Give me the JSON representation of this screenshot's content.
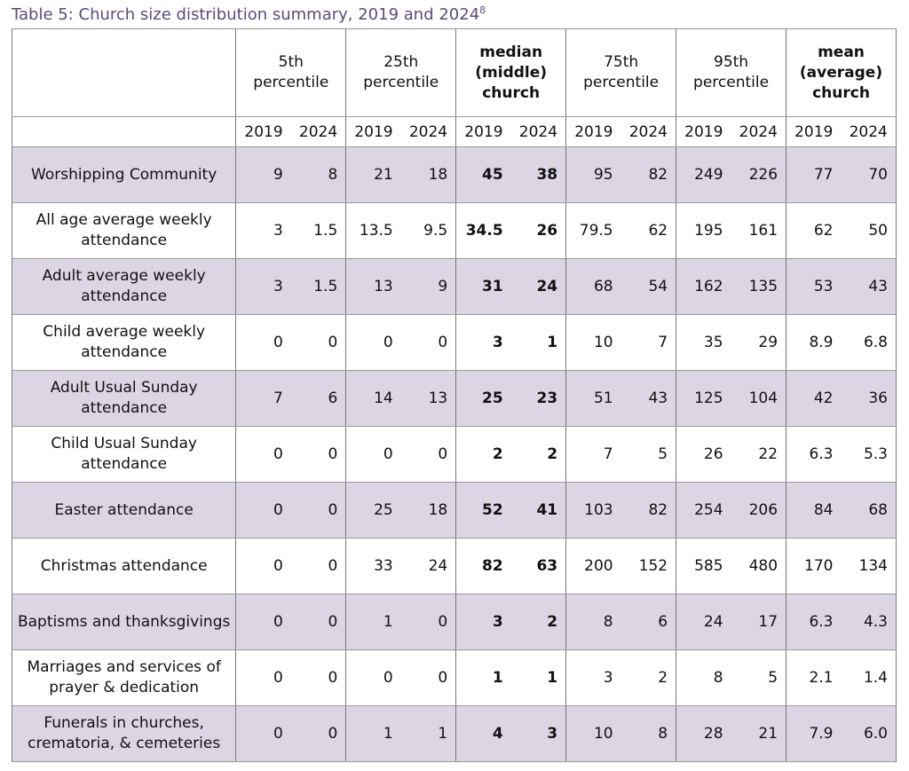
{
  "title": "Table 5: Church size distribution summary, 2019 and 2024",
  "footnote_mark": "8",
  "table": {
    "groups": [
      {
        "lines": [
          "5th",
          "percentile"
        ],
        "bold": false
      },
      {
        "lines": [
          "25th",
          "percentile"
        ],
        "bold": false
      },
      {
        "lines": [
          "median",
          "(middle)",
          "church"
        ],
        "bold": true
      },
      {
        "lines": [
          "75th",
          "percentile"
        ],
        "bold": false
      },
      {
        "lines": [
          "95th",
          "percentile"
        ],
        "bold": false
      },
      {
        "lines": [
          "mean",
          "(average)",
          "church"
        ],
        "bold": true
      }
    ],
    "years": [
      "2019",
      "2024",
      "2019",
      "2024",
      "2019",
      "2024",
      "2019",
      "2024",
      "2019",
      "2024",
      "2019",
      "2024"
    ],
    "rows": [
      {
        "label": [
          "Worshipping Community"
        ],
        "values": [
          "9",
          "8",
          "21",
          "18",
          "45",
          "38",
          "95",
          "82",
          "249",
          "226",
          "77",
          "70"
        ]
      },
      {
        "label": [
          "All age average weekly",
          "attendance"
        ],
        "values": [
          "3",
          "1.5",
          "13.5",
          "9.5",
          "34.5",
          "26",
          "79.5",
          "62",
          "195",
          "161",
          "62",
          "50"
        ]
      },
      {
        "label": [
          "Adult average weekly",
          "attendance"
        ],
        "values": [
          "3",
          "1.5",
          "13",
          "9",
          "31",
          "24",
          "68",
          "54",
          "162",
          "135",
          "53",
          "43"
        ]
      },
      {
        "label": [
          "Child average weekly",
          "attendance"
        ],
        "values": [
          "0",
          "0",
          "0",
          "0",
          "3",
          "1",
          "10",
          "7",
          "35",
          "29",
          "8.9",
          "6.8"
        ]
      },
      {
        "label": [
          "Adult Usual Sunday",
          "attendance"
        ],
        "values": [
          "7",
          "6",
          "14",
          "13",
          "25",
          "23",
          "51",
          "43",
          "125",
          "104",
          "42",
          "36"
        ]
      },
      {
        "label": [
          "Child Usual Sunday",
          "attendance"
        ],
        "values": [
          "0",
          "0",
          "0",
          "0",
          "2",
          "2",
          "7",
          "5",
          "26",
          "22",
          "6.3",
          "5.3"
        ]
      },
      {
        "label": [
          "Easter attendance"
        ],
        "values": [
          "0",
          "0",
          "25",
          "18",
          "52",
          "41",
          "103",
          "82",
          "254",
          "206",
          "84",
          "68"
        ]
      },
      {
        "label": [
          "Christmas attendance"
        ],
        "values": [
          "0",
          "0",
          "33",
          "24",
          "82",
          "63",
          "200",
          "152",
          "585",
          "480",
          "170",
          "134"
        ]
      },
      {
        "label": [
          "Baptisms and thanksgivings"
        ],
        "values": [
          "0",
          "0",
          "1",
          "0",
          "3",
          "2",
          "8",
          "6",
          "24",
          "17",
          "6.3",
          "4.3"
        ]
      },
      {
        "label": [
          "Marriages and services of",
          "prayer & dedication"
        ],
        "values": [
          "0",
          "0",
          "0",
          "0",
          "1",
          "1",
          "3",
          "2",
          "8",
          "5",
          "2.1",
          "1.4"
        ]
      },
      {
        "label": [
          "Funerals in churches,",
          "crematoria, & cemeteries"
        ],
        "values": [
          "0",
          "0",
          "1",
          "1",
          "4",
          "3",
          "10",
          "8",
          "28",
          "21",
          "7.9",
          "6.0"
        ]
      }
    ]
  }
}
